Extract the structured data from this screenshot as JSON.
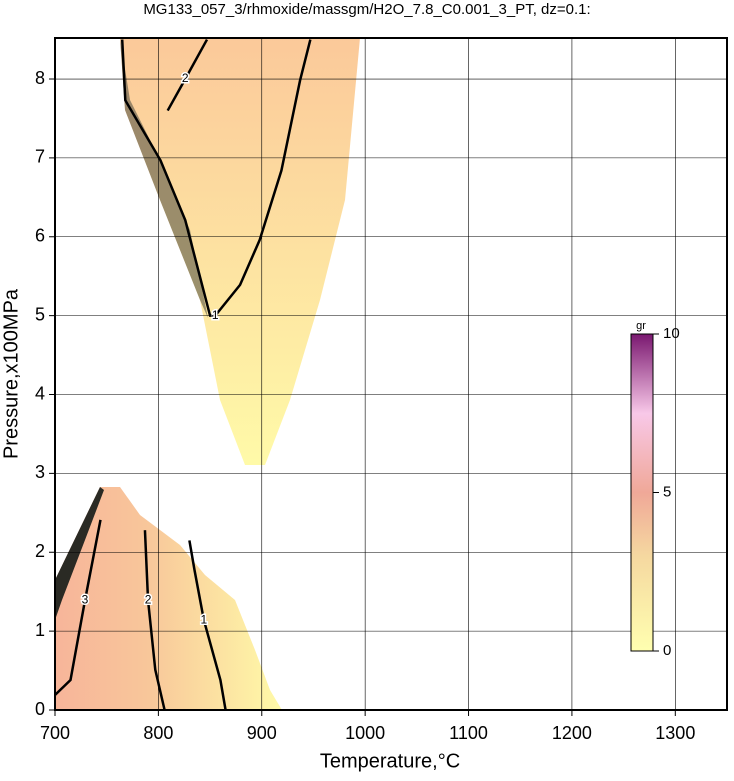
{
  "chart_data": {
    "type": "contour",
    "title": "MG133_057_3/rhmoxide/massgm/H2O_7.8_C0.001_3_PT, dz=0.1:",
    "x_label": "Temperature,°C",
    "y_label": "Pressure,x100MPa",
    "xlim": [
      700,
      1350
    ],
    "ylim": [
      0,
      8.52
    ],
    "xticks": [
      700,
      800,
      900,
      1000,
      1100,
      1200,
      1300
    ],
    "yticks": [
      0,
      1,
      2,
      3,
      4,
      5,
      6,
      7,
      8
    ],
    "grid": true,
    "series": [
      {
        "name": "1",
        "color": "#000000",
        "x": [
          765,
          768,
          802,
          826,
          850,
          855,
          879,
          898,
          919,
          937,
          947
        ],
        "values": [
          8.5,
          7.73,
          6.97,
          6.21,
          5.0,
          5.0,
          5.39,
          5.96,
          6.84,
          7.98,
          8.5
        ]
      },
      {
        "name": "2",
        "color": "#000000",
        "x": [
          847,
          826,
          809
        ],
        "values": [
          8.5,
          8.0,
          7.6
        ]
      },
      {
        "name": "1",
        "color": "#000000",
        "x": [
          830,
          835,
          844,
          860,
          865
        ],
        "values": [
          2.15,
          1.77,
          1.14,
          0.38,
          0
        ]
      },
      {
        "name": "2",
        "color": "#000000",
        "x": [
          787,
          790,
          797,
          806
        ],
        "values": [
          2.28,
          1.39,
          0.51,
          0
        ]
      },
      {
        "name": "3",
        "color": "#000000",
        "x": [
          744,
          729,
          715,
          700
        ],
        "values": [
          2.41,
          1.39,
          0.38,
          0.19
        ]
      }
    ],
    "colorbar": {
      "label": "gr",
      "lim": [
        0,
        10
      ],
      "ticks": [
        0,
        5,
        10
      ]
    }
  }
}
